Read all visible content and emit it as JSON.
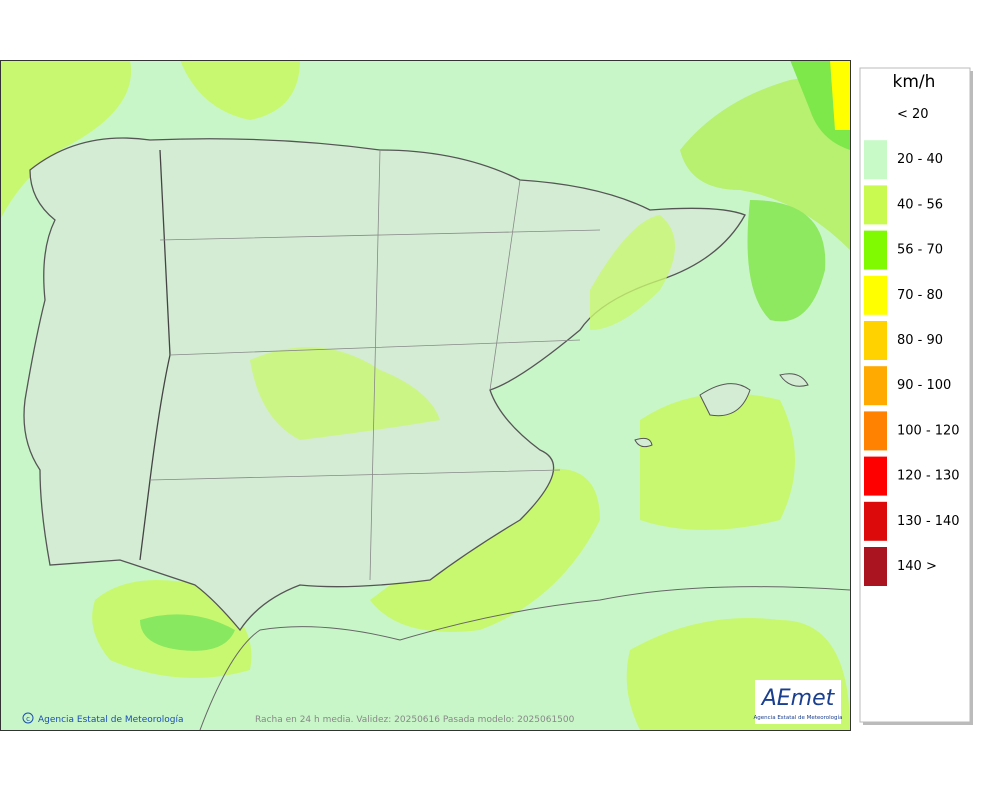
{
  "legend": {
    "unit": "km/h",
    "items": [
      {
        "label": "< 20"
      },
      {
        "label": "20 - 40",
        "color": "#c8fac8"
      },
      {
        "label": "40 - 56",
        "color": "#c8fa50"
      },
      {
        "label": "56 - 70",
        "color": "#80fa00"
      },
      {
        "label": "70 - 80",
        "color": "#ffff00"
      },
      {
        "label": "80 - 90",
        "color": "#ffd200"
      },
      {
        "label": "90 - 100",
        "color": "#ffaa00"
      },
      {
        "label": "100 - 120",
        "color": "#ff8200"
      },
      {
        "label": "120 - 130",
        "color": "#ff0000"
      },
      {
        "label": "130 - 140",
        "color": "#dc0a0a"
      },
      {
        "label": "140 >",
        "color": "#aa1420"
      }
    ]
  },
  "map": {
    "credit": "Agencia Estatal de Meteorología",
    "footer": "Racha en 24 h media. Validez: 20250616 Pasada modelo: 2025061500",
    "logo": {
      "title": "AEmet",
      "subtitle": "Agencia Estatal de Meteorología"
    }
  }
}
